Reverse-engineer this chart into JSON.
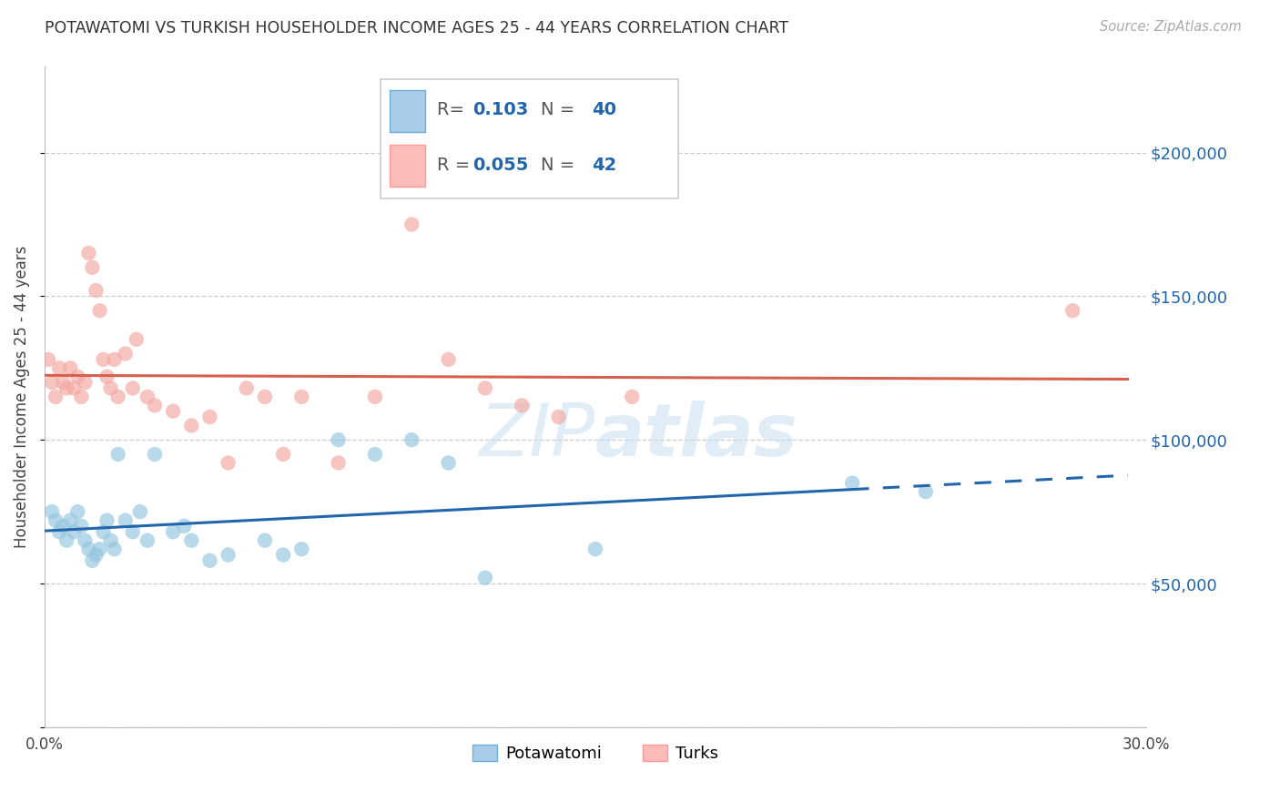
{
  "title": "POTAWATOMI VS TURKISH HOUSEHOLDER INCOME AGES 25 - 44 YEARS CORRELATION CHART",
  "source": "Source: ZipAtlas.com",
  "ylabel": "Householder Income Ages 25 - 44 years",
  "xlim": [
    0.0,
    0.3
  ],
  "ylim": [
    0,
    230000
  ],
  "yticks": [
    0,
    50000,
    100000,
    150000,
    200000
  ],
  "ytick_labels": [
    "",
    "$50,000",
    "$100,000",
    "$150,000",
    "$200,000"
  ],
  "xticks": [
    0.0,
    0.05,
    0.1,
    0.15,
    0.2,
    0.25,
    0.3
  ],
  "xtick_labels": [
    "0.0%",
    "",
    "",
    "",
    "",
    "",
    "30.0%"
  ],
  "legend_R1": "0.103",
  "legend_N1": "40",
  "legend_R2": "0.055",
  "legend_N2": "42",
  "legend_label1": "Potawatomi",
  "legend_label2": "Turks",
  "color_blue": "#92c5de",
  "color_pink": "#f4a6a0",
  "color_blue_line": "#2166ac",
  "color_pink_line": "#d6604d",
  "color_axis_text": "#2166ac",
  "watermark_color": "#c8dff0",
  "potawatomi_x": [
    0.002,
    0.003,
    0.004,
    0.005,
    0.006,
    0.007,
    0.008,
    0.009,
    0.01,
    0.011,
    0.012,
    0.013,
    0.014,
    0.015,
    0.016,
    0.017,
    0.018,
    0.019,
    0.02,
    0.022,
    0.024,
    0.026,
    0.028,
    0.03,
    0.035,
    0.038,
    0.04,
    0.045,
    0.05,
    0.06,
    0.065,
    0.07,
    0.08,
    0.09,
    0.1,
    0.11,
    0.12,
    0.15,
    0.22,
    0.24
  ],
  "potawatomi_y": [
    75000,
    72000,
    68000,
    70000,
    65000,
    72000,
    68000,
    75000,
    70000,
    65000,
    62000,
    58000,
    60000,
    62000,
    68000,
    72000,
    65000,
    62000,
    95000,
    72000,
    68000,
    75000,
    65000,
    95000,
    68000,
    70000,
    65000,
    58000,
    60000,
    65000,
    60000,
    62000,
    100000,
    95000,
    100000,
    92000,
    52000,
    62000,
    85000,
    82000
  ],
  "turks_x": [
    0.001,
    0.002,
    0.003,
    0.004,
    0.005,
    0.006,
    0.007,
    0.008,
    0.009,
    0.01,
    0.011,
    0.012,
    0.013,
    0.014,
    0.015,
    0.016,
    0.017,
    0.018,
    0.019,
    0.02,
    0.022,
    0.024,
    0.025,
    0.028,
    0.03,
    0.035,
    0.04,
    0.045,
    0.05,
    0.055,
    0.06,
    0.065,
    0.07,
    0.08,
    0.09,
    0.1,
    0.11,
    0.12,
    0.13,
    0.14,
    0.16,
    0.28
  ],
  "turks_y": [
    128000,
    120000,
    115000,
    125000,
    120000,
    118000,
    125000,
    118000,
    122000,
    115000,
    120000,
    165000,
    160000,
    152000,
    145000,
    128000,
    122000,
    118000,
    128000,
    115000,
    130000,
    118000,
    135000,
    115000,
    112000,
    110000,
    105000,
    108000,
    92000,
    118000,
    115000,
    95000,
    115000,
    92000,
    115000,
    175000,
    128000,
    118000,
    112000,
    108000,
    115000,
    145000
  ]
}
